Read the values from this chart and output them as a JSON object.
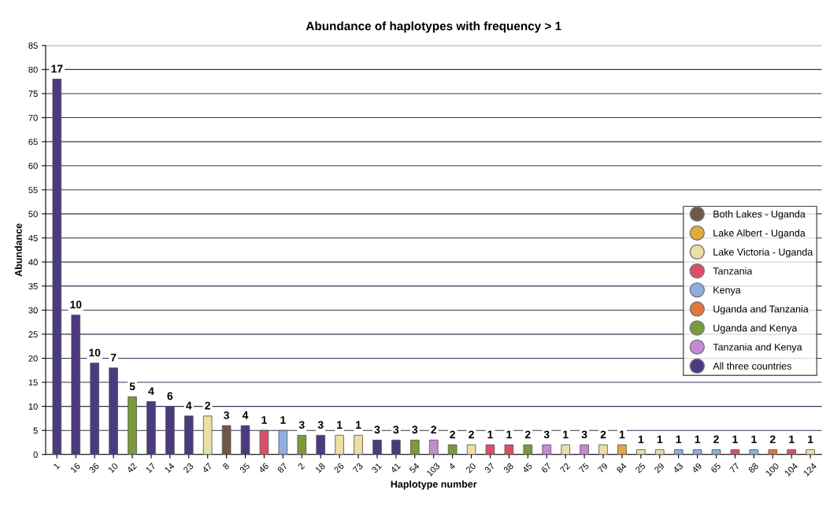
{
  "chart_data": {
    "type": "bar",
    "title": "Abundance of haplotypes with frequency > 1",
    "xlabel": "Haplotype number",
    "ylabel": "Abundance",
    "categories": [
      "1",
      "16",
      "36",
      "10",
      "42",
      "17",
      "14",
      "23",
      "47",
      "8",
      "35",
      "46",
      "87",
      "2",
      "18",
      "26",
      "73",
      "31",
      "41",
      "54",
      "103",
      "4",
      "20",
      "37",
      "38",
      "45",
      "67",
      "72",
      "75",
      "79",
      "84",
      "25",
      "29",
      "43",
      "49",
      "65",
      "77",
      "88",
      "100",
      "104",
      "124"
    ],
    "ylim": [
      0,
      85
    ],
    "yticks": [
      0,
      5,
      10,
      15,
      20,
      25,
      30,
      35,
      40,
      45,
      50,
      55,
      60,
      65,
      70,
      75,
      80,
      85
    ],
    "grid": "y",
    "legend": "right",
    "series": [
      {
        "name": "Both Lakes - Uganda",
        "color": "#6b5a48",
        "values": [
          null,
          null,
          null,
          null,
          null,
          null,
          null,
          null,
          null,
          6,
          null,
          null,
          null,
          null,
          null,
          null,
          null,
          null,
          null,
          null,
          null,
          null,
          null,
          null,
          null,
          null,
          null,
          null,
          null,
          null,
          null,
          null,
          null,
          null,
          null,
          null,
          null,
          null,
          null,
          null,
          null
        ]
      },
      {
        "name": "Lake Albert - Uganda",
        "color": "#e2a93c",
        "values": [
          null,
          null,
          null,
          null,
          null,
          null,
          null,
          null,
          null,
          null,
          null,
          null,
          null,
          null,
          null,
          null,
          null,
          null,
          null,
          null,
          null,
          null,
          null,
          null,
          null,
          null,
          null,
          null,
          null,
          null,
          2,
          null,
          null,
          null,
          null,
          null,
          null,
          null,
          null,
          null,
          null
        ]
      },
      {
        "name": "Lake Victoria - Uganda",
        "color": "#ebe0a2",
        "values": [
          null,
          null,
          null,
          null,
          null,
          null,
          null,
          null,
          8,
          null,
          null,
          null,
          null,
          null,
          null,
          4,
          4,
          null,
          null,
          null,
          null,
          null,
          2,
          null,
          null,
          null,
          null,
          2,
          null,
          2,
          null,
          1,
          1,
          null,
          null,
          null,
          null,
          null,
          null,
          null,
          1
        ]
      },
      {
        "name": "Tanzania",
        "color": "#d95068",
        "values": [
          null,
          null,
          null,
          null,
          null,
          null,
          null,
          null,
          null,
          null,
          null,
          5,
          null,
          null,
          null,
          null,
          null,
          null,
          null,
          null,
          null,
          null,
          null,
          2,
          2,
          null,
          null,
          null,
          null,
          null,
          null,
          null,
          null,
          null,
          null,
          null,
          1,
          null,
          null,
          1,
          null
        ]
      },
      {
        "name": "Kenya",
        "color": "#90aee2",
        "values": [
          null,
          null,
          null,
          null,
          null,
          null,
          null,
          null,
          null,
          null,
          null,
          null,
          5,
          null,
          null,
          null,
          null,
          null,
          null,
          null,
          null,
          null,
          null,
          null,
          null,
          null,
          null,
          null,
          null,
          null,
          null,
          null,
          null,
          1,
          1,
          1,
          null,
          1,
          null,
          null,
          null
        ]
      },
      {
        "name": "Uganda and Tanzania",
        "color": "#e2773a",
        "values": [
          null,
          null,
          null,
          null,
          null,
          null,
          null,
          null,
          null,
          null,
          null,
          null,
          null,
          null,
          null,
          null,
          null,
          null,
          null,
          null,
          null,
          null,
          null,
          null,
          null,
          null,
          null,
          null,
          null,
          null,
          null,
          null,
          null,
          null,
          null,
          null,
          null,
          null,
          1,
          null,
          null
        ]
      },
      {
        "name": "Uganda and Kenya",
        "color": "#7b9a3a",
        "values": [
          null,
          null,
          null,
          null,
          12,
          null,
          null,
          null,
          null,
          null,
          null,
          null,
          null,
          4,
          null,
          null,
          null,
          null,
          null,
          3,
          null,
          2,
          null,
          null,
          null,
          2,
          null,
          null,
          null,
          null,
          null,
          null,
          null,
          null,
          null,
          null,
          null,
          null,
          null,
          null,
          null
        ]
      },
      {
        "name": "Tanzania and Kenya",
        "color": "#c58ad2",
        "values": [
          null,
          null,
          null,
          null,
          null,
          null,
          null,
          null,
          null,
          null,
          null,
          null,
          null,
          null,
          null,
          null,
          null,
          null,
          null,
          null,
          3,
          null,
          null,
          null,
          null,
          null,
          2,
          null,
          2,
          null,
          null,
          null,
          null,
          null,
          null,
          null,
          null,
          null,
          null,
          null,
          null
        ]
      },
      {
        "name": "All three countries",
        "color": "#4b3a80",
        "values": [
          78,
          29,
          19,
          18,
          null,
          11,
          10,
          8,
          null,
          null,
          6,
          null,
          null,
          null,
          4,
          null,
          null,
          3,
          3,
          null,
          null,
          null,
          null,
          null,
          null,
          null,
          null,
          null,
          null,
          null,
          null,
          null,
          null,
          null,
          null,
          null,
          null,
          null,
          null,
          null,
          null
        ]
      }
    ],
    "annotations": [
      {
        "text": "17",
        "x": "1",
        "y": 78
      },
      {
        "text": "10",
        "x": "16",
        "y": 29
      },
      {
        "text": "10",
        "x": "36",
        "y": 19
      },
      {
        "text": "7",
        "x": "10",
        "y": 18
      },
      {
        "text": "5",
        "x": "42",
        "y": 12
      },
      {
        "text": "4",
        "x": "17",
        "y": 11
      },
      {
        "text": "6",
        "x": "14",
        "y": 10
      },
      {
        "text": "4",
        "x": "23",
        "y": 8
      },
      {
        "text": "2",
        "x": "47",
        "y": 8
      },
      {
        "text": "3",
        "x": "8",
        "y": 6
      },
      {
        "text": "4",
        "x": "35",
        "y": 6
      },
      {
        "text": "1",
        "x": "46",
        "y": 5
      },
      {
        "text": "1",
        "x": "87",
        "y": 5
      },
      {
        "text": "3",
        "x": "2",
        "y": 4
      },
      {
        "text": "3",
        "x": "18",
        "y": 4
      },
      {
        "text": "1",
        "x": "26",
        "y": 4
      },
      {
        "text": "1",
        "x": "73",
        "y": 4
      },
      {
        "text": "3",
        "x": "31",
        "y": 3
      },
      {
        "text": "3",
        "x": "41",
        "y": 3
      },
      {
        "text": "3",
        "x": "54",
        "y": 3
      },
      {
        "text": "2",
        "x": "103",
        "y": 3
      },
      {
        "text": "2",
        "x": "4",
        "y": 2
      },
      {
        "text": "2",
        "x": "20",
        "y": 2
      },
      {
        "text": "1",
        "x": "37",
        "y": 2
      },
      {
        "text": "1",
        "x": "38",
        "y": 2
      },
      {
        "text": "2",
        "x": "45",
        "y": 2
      },
      {
        "text": "3",
        "x": "67",
        "y": 2
      },
      {
        "text": "1",
        "x": "72",
        "y": 2
      },
      {
        "text": "3",
        "x": "75",
        "y": 2
      },
      {
        "text": "2",
        "x": "79",
        "y": 2
      },
      {
        "text": "1",
        "x": "84",
        "y": 2
      },
      {
        "text": "1",
        "x": "25",
        "y": 1
      },
      {
        "text": "1",
        "x": "29",
        "y": 1
      },
      {
        "text": "1",
        "x": "43",
        "y": 1
      },
      {
        "text": "1",
        "x": "49",
        "y": 1
      },
      {
        "text": "2",
        "x": "65",
        "y": 1
      },
      {
        "text": "1",
        "x": "77",
        "y": 1
      },
      {
        "text": "1",
        "x": "88",
        "y": 1
      },
      {
        "text": "2",
        "x": "100",
        "y": 1
      },
      {
        "text": "1",
        "x": "104",
        "y": 1
      },
      {
        "text": "1",
        "x": "124",
        "y": 1
      }
    ]
  }
}
